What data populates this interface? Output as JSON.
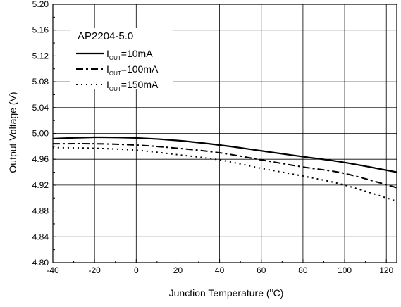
{
  "chart_data": {
    "type": "line",
    "title": "AP2204-5.0",
    "xlabel": "Junction Temperature (",
    "xlabel_unit_sup": "o",
    "xlabel_unit_tail": "C)",
    "ylabel": "Output Voltage (V)",
    "xlim": [
      -40,
      125
    ],
    "ylim": [
      4.8,
      5.2
    ],
    "x_ticks": [
      -40,
      -20,
      0,
      20,
      40,
      60,
      80,
      100,
      120
    ],
    "x_tick_labels": [
      "-40",
      "-20",
      "0",
      "20",
      "40",
      "60",
      "80",
      "100",
      "120"
    ],
    "y_ticks": [
      4.8,
      4.84,
      4.88,
      4.92,
      4.96,
      5.0,
      5.04,
      5.08,
      5.12,
      5.16,
      5.2
    ],
    "y_tick_labels": [
      "4.80",
      "4.84",
      "4.88",
      "4.92",
      "4.96",
      "5.00",
      "5.04",
      "5.08",
      "5.12",
      "5.16",
      "5.20"
    ],
    "grid": true,
    "legend_position": "top-left",
    "series": [
      {
        "name_prefix": "I",
        "name_sub": "OUT",
        "name_suffix": "=10mA",
        "style": "solid",
        "x": [
          -40,
          -20,
          0,
          20,
          40,
          60,
          80,
          100,
          125
        ],
        "y": [
          4.992,
          4.994,
          4.993,
          4.989,
          4.982,
          4.973,
          4.964,
          4.955,
          4.94
        ]
      },
      {
        "name_prefix": "I",
        "name_sub": "OUT",
        "name_suffix": "=100mA",
        "style": "dashdot",
        "x": [
          -40,
          -20,
          0,
          20,
          40,
          60,
          80,
          100,
          125
        ],
        "y": [
          4.984,
          4.984,
          4.982,
          4.977,
          4.97,
          4.959,
          4.948,
          4.938,
          4.916
        ]
      },
      {
        "name_prefix": "I",
        "name_sub": "OUT",
        "name_suffix": "=150mA",
        "style": "dotted",
        "x": [
          -40,
          -20,
          0,
          20,
          40,
          60,
          80,
          100,
          125
        ],
        "y": [
          4.978,
          4.977,
          4.974,
          4.967,
          4.959,
          4.946,
          4.934,
          4.92,
          4.895
        ]
      }
    ]
  }
}
